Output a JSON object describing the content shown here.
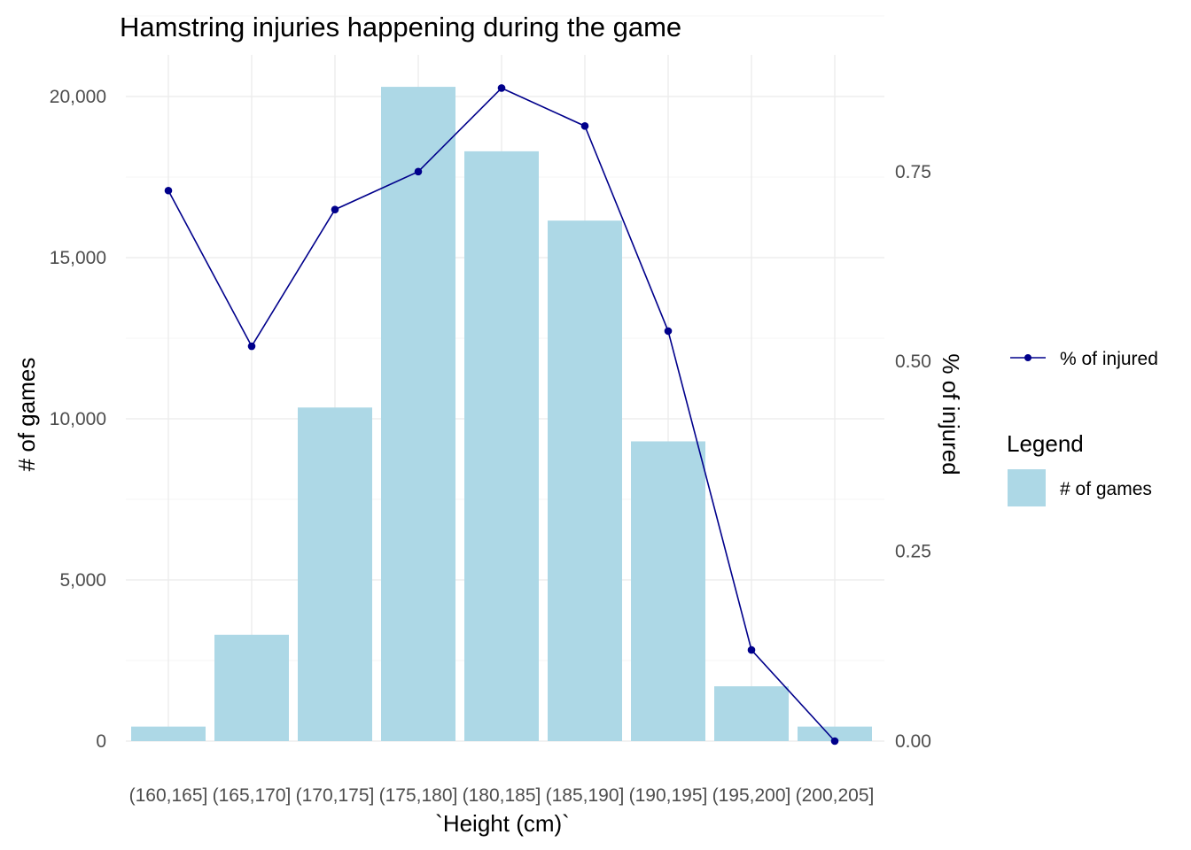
{
  "chart_data": {
    "type": "bar",
    "title": "Hamstring injuries happening during the game",
    "xlabel": "`Height (cm)`",
    "ylabel": "# of games",
    "y2label": "% of injured",
    "categories": [
      "(160,165]",
      "(165,170]",
      "(170,175]",
      "(175,180]",
      "(180,185]",
      "(185,190]",
      "(190,195]",
      "(195,200]",
      "(200,205]"
    ],
    "series": [
      {
        "name": "# of games",
        "type": "bar",
        "axis": "left",
        "color": "#add8e6",
        "values": [
          450,
          3300,
          10350,
          20300,
          18300,
          16150,
          9300,
          1700,
          450
        ]
      },
      {
        "name": "% of injured",
        "type": "line",
        "axis": "right",
        "color": "#00008b",
        "values": [
          0.725,
          0.52,
          0.7,
          0.75,
          0.86,
          0.81,
          0.54,
          0.12,
          0.0
        ]
      }
    ],
    "ylim": [
      0,
      21000
    ],
    "y2lim": [
      0,
      0.89
    ],
    "yticks": [
      0,
      5000,
      10000,
      15000,
      20000
    ],
    "ytick_labels": [
      "0",
      "5,000",
      "10,000",
      "15,000",
      "20,000"
    ],
    "y2ticks": [
      0,
      0.25,
      0.5,
      0.75
    ],
    "y2tick_labels": [
      "0.00",
      "0.25",
      "0.50",
      "0.75"
    ],
    "grid": true,
    "legend": {
      "placement": "right",
      "line_entry": "% of injured",
      "fill_title": "Legend",
      "fill_entry": "# of games"
    }
  }
}
